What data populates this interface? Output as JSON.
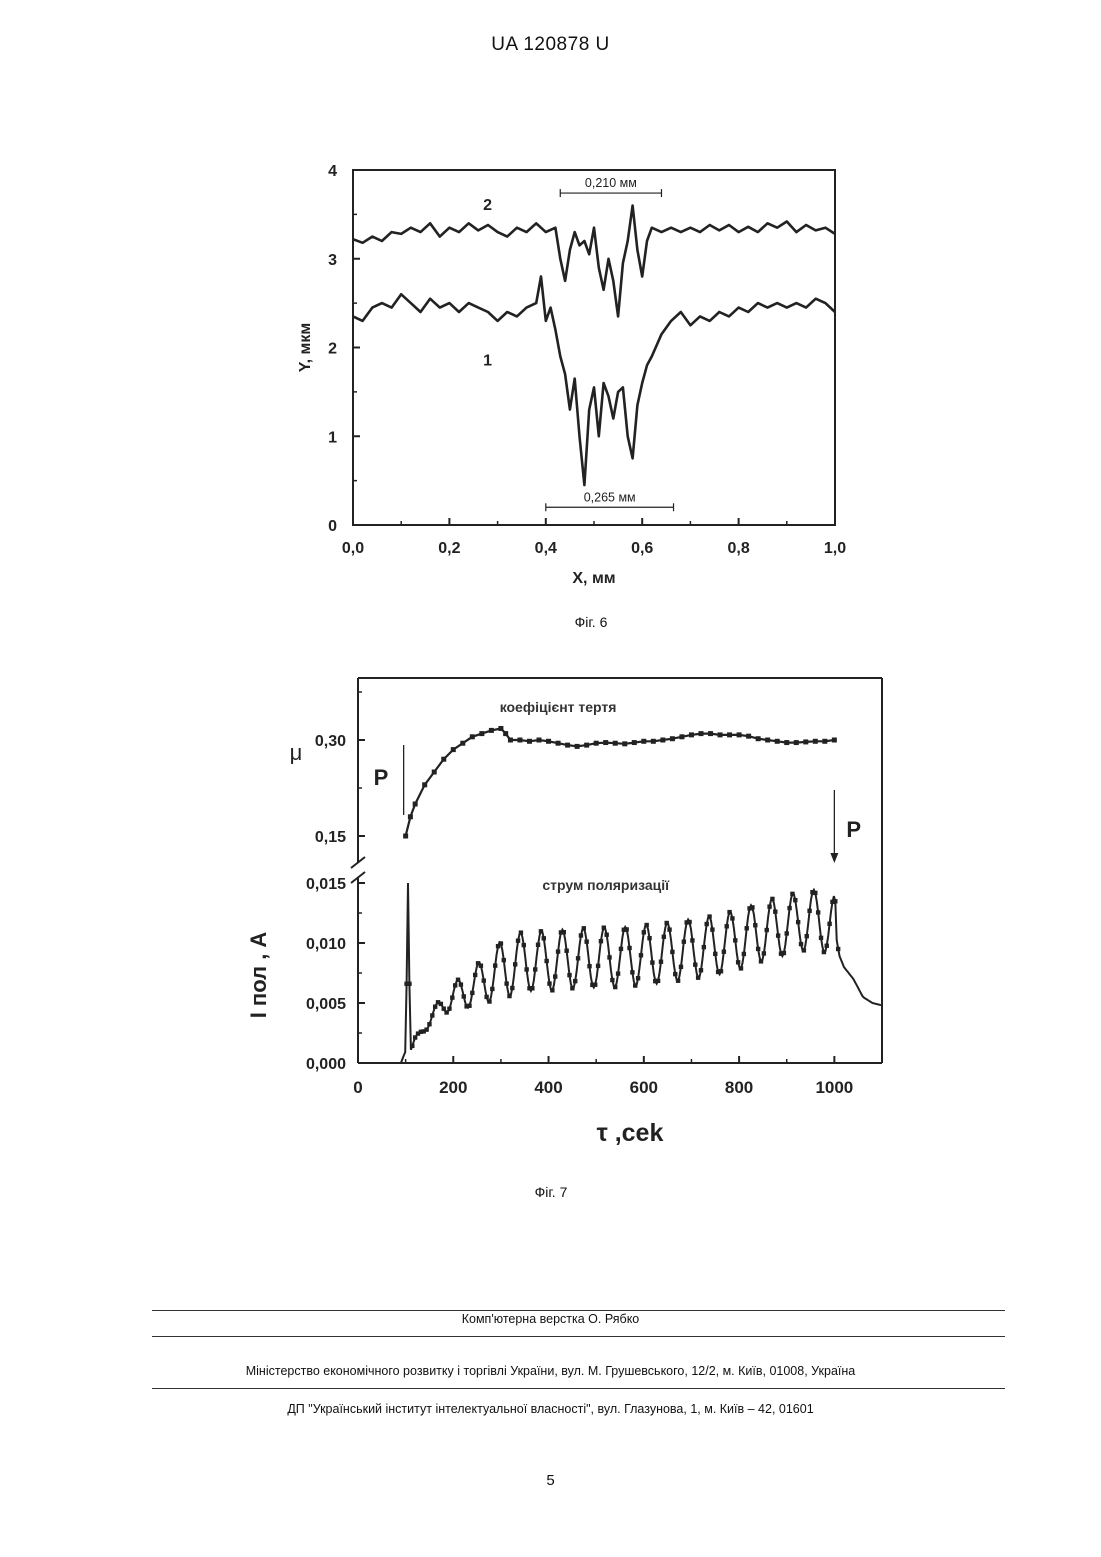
{
  "header": {
    "patent_number": "UA   120878   U"
  },
  "figures": [
    {
      "caption": "Фіг. 6"
    },
    {
      "caption": "Фіг. 7"
    }
  ],
  "footer": {
    "typesetting": "Комп'ютерна верстка О. Рябко",
    "ministry": "Міністерство економічного розвитку і торгівлі України, вул. М. Грушевського, 12/2, м. Київ, 01008, Україна",
    "institute": "ДП \"Український інститут інтелектуальної власності\", вул. Глазунова, 1, м. Київ – 42, 01601",
    "page_number": "5"
  },
  "chart_data": [
    {
      "type": "line",
      "xlabel": "X, мм",
      "ylabel": "Y, мкм",
      "xlim": [
        0,
        1
      ],
      "ylim": [
        0,
        4
      ],
      "xticks": [
        "0,0",
        "0,2",
        "0,4",
        "0,6",
        "0,8",
        "1,0"
      ],
      "yticks": [
        "0",
        "1",
        "2",
        "3",
        "4"
      ],
      "annotations": [
        {
          "text": "0,210 мм",
          "x_start": 0.43,
          "x_end": 0.64,
          "y": 3.74
        },
        {
          "text": "0,265 мм",
          "x_start": 0.4,
          "x_end": 0.665,
          "y": 0.2
        }
      ],
      "series": [
        {
          "name": "2",
          "x": [
            0.0,
            0.02,
            0.04,
            0.06,
            0.08,
            0.1,
            0.12,
            0.14,
            0.16,
            0.18,
            0.2,
            0.22,
            0.24,
            0.26,
            0.28,
            0.3,
            0.32,
            0.34,
            0.36,
            0.38,
            0.4,
            0.42,
            0.43,
            0.44,
            0.45,
            0.46,
            0.47,
            0.48,
            0.49,
            0.5,
            0.51,
            0.52,
            0.53,
            0.54,
            0.55,
            0.56,
            0.57,
            0.58,
            0.59,
            0.6,
            0.61,
            0.62,
            0.64,
            0.66,
            0.68,
            0.7,
            0.72,
            0.74,
            0.76,
            0.78,
            0.8,
            0.82,
            0.84,
            0.86,
            0.88,
            0.9,
            0.92,
            0.94,
            0.96,
            0.98,
            1.0
          ],
          "y": [
            3.22,
            3.18,
            3.25,
            3.2,
            3.3,
            3.28,
            3.35,
            3.3,
            3.4,
            3.25,
            3.35,
            3.3,
            3.4,
            3.32,
            3.38,
            3.3,
            3.25,
            3.35,
            3.3,
            3.4,
            3.3,
            3.35,
            3.0,
            2.75,
            3.1,
            3.3,
            3.15,
            3.2,
            3.05,
            3.35,
            2.9,
            2.65,
            3.0,
            2.75,
            2.35,
            2.95,
            3.2,
            3.6,
            3.1,
            2.8,
            3.2,
            3.35,
            3.3,
            3.35,
            3.3,
            3.35,
            3.3,
            3.38,
            3.32,
            3.38,
            3.3,
            3.36,
            3.3,
            3.4,
            3.35,
            3.42,
            3.3,
            3.38,
            3.32,
            3.35,
            3.28
          ]
        },
        {
          "name": "1",
          "x": [
            0.0,
            0.02,
            0.04,
            0.06,
            0.08,
            0.1,
            0.12,
            0.14,
            0.16,
            0.18,
            0.2,
            0.22,
            0.24,
            0.26,
            0.28,
            0.3,
            0.32,
            0.34,
            0.36,
            0.38,
            0.39,
            0.4,
            0.41,
            0.42,
            0.43,
            0.44,
            0.45,
            0.46,
            0.47,
            0.48,
            0.49,
            0.5,
            0.51,
            0.52,
            0.53,
            0.54,
            0.55,
            0.56,
            0.57,
            0.58,
            0.59,
            0.6,
            0.61,
            0.62,
            0.64,
            0.66,
            0.68,
            0.7,
            0.72,
            0.74,
            0.76,
            0.78,
            0.8,
            0.82,
            0.84,
            0.86,
            0.88,
            0.9,
            0.92,
            0.94,
            0.96,
            0.98,
            1.0
          ],
          "y": [
            2.35,
            2.3,
            2.45,
            2.5,
            2.45,
            2.6,
            2.5,
            2.4,
            2.55,
            2.45,
            2.5,
            2.4,
            2.5,
            2.45,
            2.4,
            2.3,
            2.4,
            2.35,
            2.45,
            2.5,
            2.8,
            2.3,
            2.45,
            2.2,
            1.9,
            1.7,
            1.3,
            1.65,
            1.0,
            0.45,
            1.3,
            1.55,
            1.0,
            1.6,
            1.45,
            1.2,
            1.5,
            1.55,
            1.0,
            0.75,
            1.35,
            1.6,
            1.8,
            1.9,
            2.15,
            2.3,
            2.4,
            2.25,
            2.35,
            2.3,
            2.4,
            2.35,
            2.45,
            2.4,
            2.5,
            2.45,
            2.5,
            2.45,
            2.5,
            2.45,
            2.55,
            2.5,
            2.4
          ]
        }
      ]
    },
    {
      "type": "scatter",
      "xlabel": "τ ,cek",
      "xlim": [
        0,
        1100
      ],
      "xticks": [
        "0",
        "200",
        "400",
        "600",
        "800",
        "1000"
      ],
      "upper_panel": {
        "ylabel": "μ",
        "yticks": [
          "0,15",
          "0,30"
        ],
        "series_label": "коефіцієнт тертя",
        "x": [
          100,
          110,
          120,
          140,
          160,
          180,
          200,
          220,
          240,
          260,
          280,
          300,
          310,
          320,
          340,
          360,
          380,
          400,
          420,
          440,
          460,
          480,
          500,
          520,
          540,
          560,
          580,
          600,
          620,
          640,
          660,
          680,
          700,
          720,
          740,
          760,
          780,
          800,
          820,
          840,
          860,
          880,
          900,
          920,
          940,
          960,
          980,
          1000
        ],
        "y": [
          0.15,
          0.18,
          0.2,
          0.23,
          0.25,
          0.27,
          0.285,
          0.295,
          0.305,
          0.31,
          0.315,
          0.318,
          0.31,
          0.3,
          0.3,
          0.298,
          0.3,
          0.298,
          0.295,
          0.292,
          0.29,
          0.292,
          0.295,
          0.296,
          0.295,
          0.294,
          0.296,
          0.298,
          0.298,
          0.3,
          0.302,
          0.305,
          0.308,
          0.31,
          0.31,
          0.308,
          0.308,
          0.308,
          0.306,
          0.302,
          0.3,
          0.298,
          0.296,
          0.296,
          0.297,
          0.298,
          0.298,
          0.3
        ]
      },
      "lower_panel": {
        "ylabel": "I пол , A",
        "yticks": [
          "0,000",
          "0,005",
          "0,010",
          "0,015"
        ],
        "ylim": [
          0,
          0.016
        ],
        "series_label": "струм поляризації",
        "x": [
          0,
          50,
          90,
          100,
          105,
          110,
          120,
          140,
          160,
          180,
          200,
          250,
          300,
          350,
          400,
          450,
          500,
          550,
          600,
          650,
          700,
          750,
          800,
          850,
          900,
          950,
          1000,
          1010,
          1020,
          1040,
          1060,
          1080,
          1100
        ],
        "y": [
          0.0,
          0.0,
          0.0,
          0.001,
          0.015,
          0.001,
          0.002,
          0.003,
          0.004,
          0.005,
          0.0055,
          0.0065,
          0.0078,
          0.0085,
          0.0085,
          0.0087,
          0.0088,
          0.0088,
          0.009,
          0.0092,
          0.0095,
          0.0098,
          0.0103,
          0.011,
          0.0115,
          0.012,
          0.0115,
          0.009,
          0.008,
          0.007,
          0.0055,
          0.005,
          0.0048
        ],
        "oscillation_amplitude": 0.0025
      },
      "annotations": [
        {
          "text": "P",
          "position": "left",
          "x": 100
        },
        {
          "text": "P",
          "position": "right",
          "x": 1000
        }
      ]
    }
  ]
}
